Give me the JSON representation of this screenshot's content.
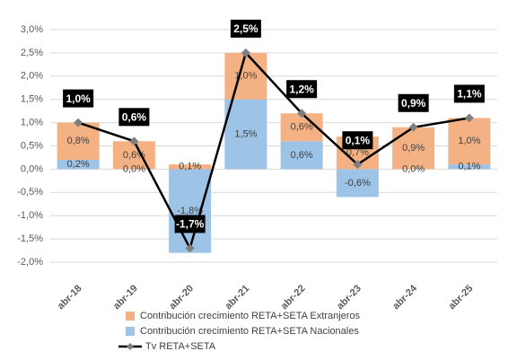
{
  "chart_data": {
    "type": "combo",
    "categories": [
      "abr-18",
      "abr-19",
      "abr-20",
      "abr-21",
      "abr-22",
      "abr-23",
      "abr-24",
      "abr-25"
    ],
    "series": [
      {
        "name": "Contribución crecimiento RETA+SETA Extranjeros",
        "type": "bar",
        "color": "#f4b183",
        "values": [
          0.8,
          0.6,
          0.1,
          1.0,
          0.6,
          0.7,
          0.9,
          1.0
        ],
        "value_labels": [
          "0,8%",
          "0,6%",
          "0,1%",
          "1,0%",
          "0,6%",
          "0,7%",
          "0,9%",
          "1,0%"
        ]
      },
      {
        "name": "Contribución crecimiento RETA+SETA Nacionales",
        "type": "bar",
        "color": "#9dc3e6",
        "values": [
          0.2,
          0.0,
          -1.8,
          1.5,
          0.6,
          -0.6,
          0.0,
          0.1
        ],
        "value_labels": [
          "0,2%",
          "0,0%",
          "-1,8%",
          "1,5%",
          "0,6%",
          "-0,6%",
          "0,0%",
          "0,1%"
        ]
      },
      {
        "name": "Tv RETA+SETA",
        "type": "line",
        "color": "#000000",
        "marker_color": "#7f7f7f",
        "values": [
          1.0,
          0.6,
          -1.7,
          2.5,
          1.2,
          0.1,
          0.9,
          1.1
        ],
        "value_labels": [
          "1,0%",
          "0,6%",
          "-1,7%",
          "2,5%",
          "1,2%",
          "0,1%",
          "0,9%",
          "1,1%"
        ]
      }
    ],
    "ylim": [
      -2.0,
      3.0
    ],
    "yticks": [
      {
        "value": -2.0,
        "label": "-2,0%"
      },
      {
        "value": -1.5,
        "label": "-1,5%"
      },
      {
        "value": -1.0,
        "label": "-1,0%"
      },
      {
        "value": -0.5,
        "label": "-0,5%"
      },
      {
        "value": 0.0,
        "label": "0,0%"
      },
      {
        "value": 0.5,
        "label": "0,5%"
      },
      {
        "value": 1.0,
        "label": "1,0%"
      },
      {
        "value": 1.5,
        "label": "1,5%"
      },
      {
        "value": 2.0,
        "label": "2,0%"
      },
      {
        "value": 2.5,
        "label": "2,5%"
      },
      {
        "value": 3.0,
        "label": "3,0%"
      }
    ],
    "grid": true,
    "legend": "bottom"
  }
}
